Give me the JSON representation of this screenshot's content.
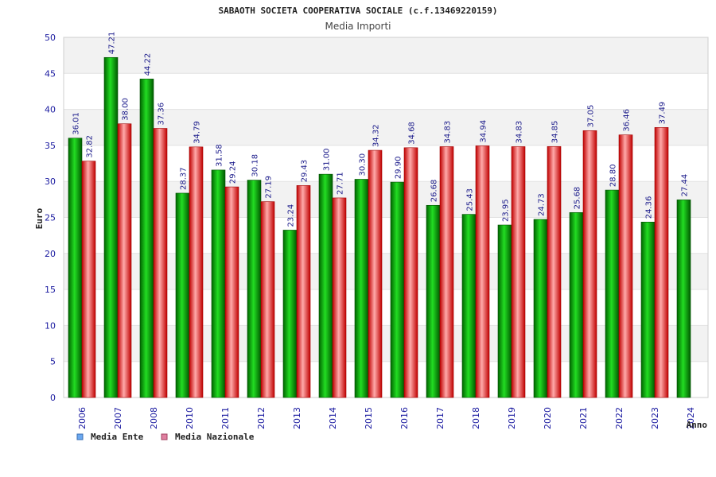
{
  "chart_data": {
    "type": "bar",
    "title": "SABAOTH SOCIETA COOPERATIVA SOCIALE (c.f.13469220159)",
    "subtitle": "Media Importi",
    "ylabel": "Euro",
    "xlabel": "Anno",
    "ylim": [
      0,
      50
    ],
    "yticks": [
      0,
      5,
      10,
      15,
      20,
      25,
      30,
      35,
      40,
      45,
      50
    ],
    "grid": "horizontal bands",
    "legend_position": "bottom-left",
    "categories": [
      "2006",
      "2007",
      "2008",
      "2010",
      "2011",
      "2012",
      "2013",
      "2014",
      "2015",
      "2016",
      "2017",
      "2018",
      "2019",
      "2020",
      "2021",
      "2022",
      "2023",
      "2024"
    ],
    "series": [
      {
        "name": "Media Ente",
        "color": "#00a000",
        "legend_color": "#6aa8f0",
        "values": [
          36.01,
          47.21,
          44.22,
          28.37,
          31.58,
          30.18,
          23.24,
          31.0,
          30.3,
          29.9,
          26.68,
          25.43,
          23.95,
          24.73,
          25.68,
          28.8,
          24.36,
          27.44
        ],
        "labels": [
          "36.01",
          "47.21",
          "44.22",
          "28.37",
          "31.58",
          "30.18",
          "23.24",
          "31.00",
          "30.30",
          "29.90",
          "26.68",
          "25.43",
          "23.95",
          "24.73",
          "25.68",
          "28.80",
          "24.36",
          "27.44"
        ]
      },
      {
        "name": "Media Nazionale",
        "color": "#e01010",
        "legend_color": "#e080a0",
        "values": [
          32.82,
          38.0,
          37.36,
          34.79,
          29.24,
          27.19,
          29.43,
          27.71,
          34.32,
          34.68,
          34.83,
          34.94,
          34.83,
          34.85,
          37.05,
          36.46,
          37.49,
          null
        ],
        "labels": [
          "32.82",
          "38.00",
          "37.36",
          "34.79",
          "29.24",
          "27.19",
          "29.43",
          "27.71",
          "34.32",
          "34.68",
          "34.83",
          "34.94",
          "34.83",
          "34.85",
          "37.05",
          "36.46",
          "37.49",
          null
        ]
      }
    ]
  }
}
